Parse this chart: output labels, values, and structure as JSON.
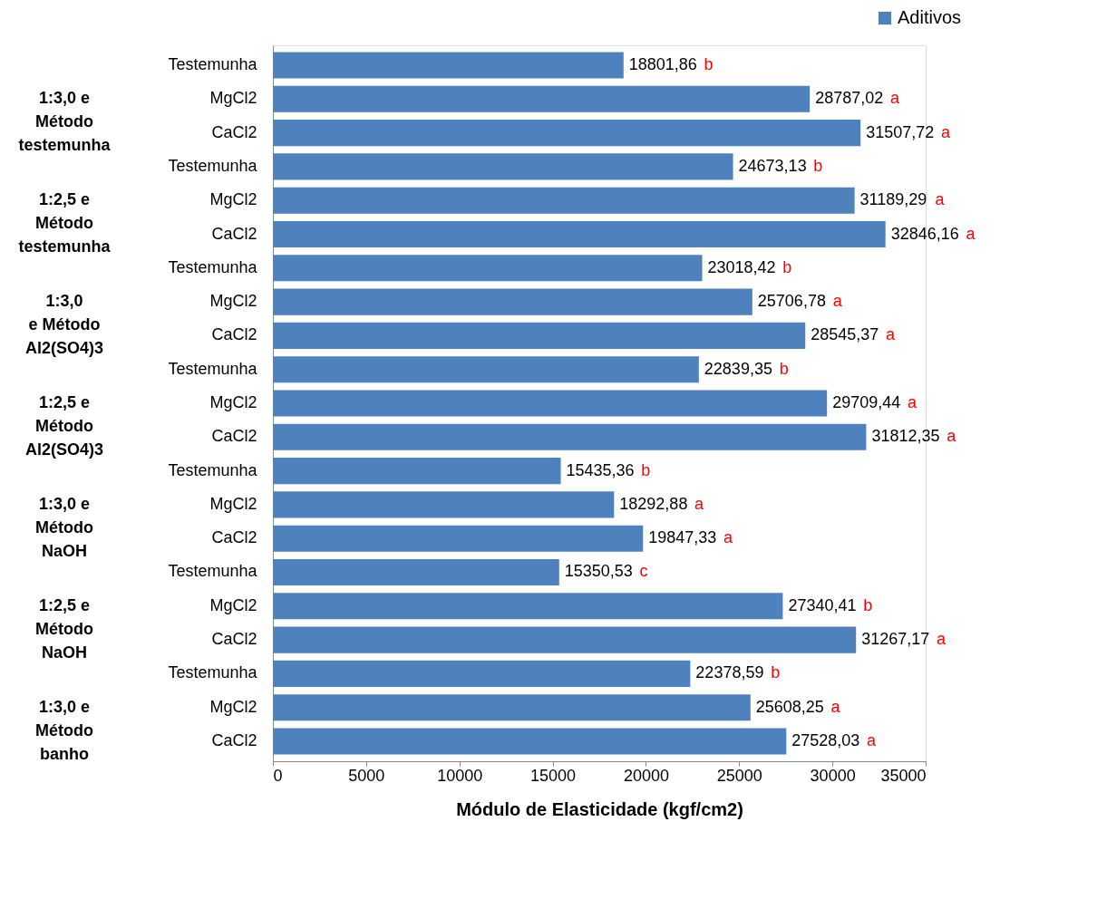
{
  "chart_data": {
    "type": "bar",
    "orientation": "horizontal",
    "xlabel": "Módulo de Elasticidade (kgf/cm2)",
    "categories": [
      "Testemunha",
      "MgCl2",
      "CaCl2",
      "Testemunha",
      "MgCl2",
      "CaCl2",
      "Testemunha",
      "MgCl2",
      "CaCl2",
      "Testemunha",
      "MgCl2",
      "CaCl2",
      "Testemunha",
      "MgCl2",
      "CaCl2",
      "Testemunha",
      "MgCl2",
      "CaCl2",
      "Testemunha",
      "MgCl2",
      "CaCl2"
    ],
    "series": [
      {
        "name": "Aditivos",
        "color": "#4f81bd",
        "values": [
          18801.86,
          28787.02,
          31507.72,
          24673.13,
          31189.29,
          32846.16,
          23018.42,
          25706.78,
          28545.37,
          22839.35,
          29709.44,
          31812.35,
          15435.36,
          18292.88,
          19847.33,
          15350.53,
          27340.41,
          31267.17,
          22378.59,
          25608.25,
          27528.03
        ],
        "value_labels": [
          "18801,86 b",
          "28787,02 a",
          "31507,72 a",
          "24673,13 b",
          "31189,29 a",
          "32846,16 a",
          "23018,42 b",
          "25706,78 a",
          "28545,37 a",
          "22839,35 b",
          "29709,44 a",
          "31812,35 a",
          "15435,36 b",
          "18292,88 a",
          "19847,33 a",
          "15350,53 c",
          "27340,41 b",
          "31267,17 a",
          "22378,59 b",
          "25608,25 a",
          "27528,03 a"
        ]
      }
    ],
    "annotations": [
      "1:3,0 e\nMétodo\ntestemunha",
      "1:2,5 e\nMétodo\ntestemunha",
      "1:3,0\ne Método\nAl2(SO4)3",
      "1:2,5 e\nMétodo\nAl2(SO4)3",
      "1:3,0 e\nMétodo\nNaOH",
      "1:2,5 e\nMétodo\nNaOH",
      "1:3,0 e\nMétodo\nbanho"
    ],
    "xlim": [
      0,
      35000
    ],
    "xticks": [
      0,
      5000,
      10000,
      15000,
      20000,
      25000,
      30000,
      35000
    ],
    "grid": false,
    "legend": "top right"
  }
}
